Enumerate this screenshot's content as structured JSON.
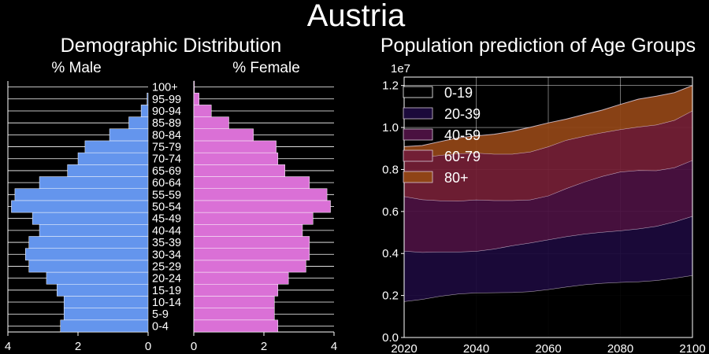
{
  "title": "Austria",
  "colors": {
    "background": "#000000",
    "male": "#6495ED",
    "female": "#DA70D6",
    "grid": "#ffffff",
    "edge": "#ffffff",
    "band_0_19": "#000000",
    "band_20_39": "#1b0a3b",
    "band_40_59": "#4a1140",
    "band_60_79": "#721f35",
    "band_80": "#8f4416"
  },
  "chart_data": [
    {
      "type": "bar",
      "title": "Demographic Distribution",
      "orientation": "horizontal",
      "categories": [
        "0-4",
        "5-9",
        "10-14",
        "15-19",
        "20-24",
        "25-29",
        "30-34",
        "35-39",
        "40-44",
        "45-49",
        "50-54",
        "55-59",
        "60-64",
        "65-69",
        "70-74",
        "75-79",
        "80-84",
        "85-89",
        "90-94",
        "95-99",
        "100+"
      ],
      "male": {
        "label": "% Male",
        "values": [
          2.5,
          2.4,
          2.4,
          2.6,
          2.9,
          3.4,
          3.5,
          3.4,
          3.1,
          3.3,
          3.9,
          3.8,
          3.1,
          2.3,
          2.0,
          1.8,
          1.1,
          0.55,
          0.2,
          0.03,
          0.0
        ],
        "xlim": [
          4,
          0
        ],
        "ticks": [
          4,
          2,
          0
        ]
      },
      "female": {
        "label": "% Female",
        "values": [
          2.4,
          2.3,
          2.3,
          2.4,
          2.7,
          3.2,
          3.3,
          3.3,
          3.1,
          3.4,
          3.9,
          3.8,
          3.3,
          2.6,
          2.4,
          2.35,
          1.7,
          1.0,
          0.5,
          0.15,
          0.02
        ],
        "xlim": [
          0,
          4
        ],
        "ticks": [
          0,
          2,
          4
        ]
      }
    },
    {
      "type": "area",
      "stacked": true,
      "title": "Population prediction of Age Groups",
      "x": [
        2020,
        2025,
        2030,
        2035,
        2040,
        2045,
        2050,
        2055,
        2060,
        2065,
        2070,
        2075,
        2080,
        2085,
        2090,
        2095,
        2100
      ],
      "series": [
        {
          "name": "0-19",
          "values": [
            1720000,
            1820000,
            1970000,
            2080000,
            2130000,
            2140000,
            2150000,
            2190000,
            2290000,
            2410000,
            2520000,
            2590000,
            2630000,
            2660000,
            2720000,
            2830000,
            2960000
          ]
        },
        {
          "name": "20-39",
          "values": [
            2400000,
            2240000,
            2110000,
            2000000,
            1980000,
            2080000,
            2230000,
            2320000,
            2370000,
            2400000,
            2410000,
            2430000,
            2460000,
            2520000,
            2580000,
            2680000,
            2820000
          ]
        },
        {
          "name": "40-59",
          "values": [
            2600000,
            2510000,
            2440000,
            2420000,
            2450000,
            2310000,
            2150000,
            2050000,
            2090000,
            2290000,
            2480000,
            2660000,
            2800000,
            2780000,
            2650000,
            2580000,
            2660000
          ]
        },
        {
          "name": "60-79",
          "values": [
            1870000,
            2000000,
            2160000,
            2260000,
            2230000,
            2210000,
            2210000,
            2280000,
            2340000,
            2300000,
            2180000,
            2080000,
            2020000,
            2070000,
            2180000,
            2260000,
            2360000
          ]
        },
        {
          "name": "80+",
          "values": [
            500000,
            570000,
            650000,
            750000,
            810000,
            940000,
            1080000,
            1170000,
            1130000,
            1000000,
            1030000,
            1070000,
            1190000,
            1320000,
            1360000,
            1310000,
            1200000
          ]
        }
      ],
      "xlim": [
        2020,
        2100
      ],
      "ylim": [
        0,
        12400000
      ],
      "xticks": [
        2020,
        2040,
        2060,
        2080,
        2100
      ],
      "yticks": [
        0,
        2000000,
        4000000,
        6000000,
        8000000,
        10000000,
        12000000
      ],
      "ytick_labels": [
        "0.0",
        "0.2",
        "0.4",
        "0.6",
        "0.8",
        "1.0",
        "1.2"
      ],
      "offset_label": "1e7",
      "grid": true,
      "legend": "top-left"
    }
  ]
}
